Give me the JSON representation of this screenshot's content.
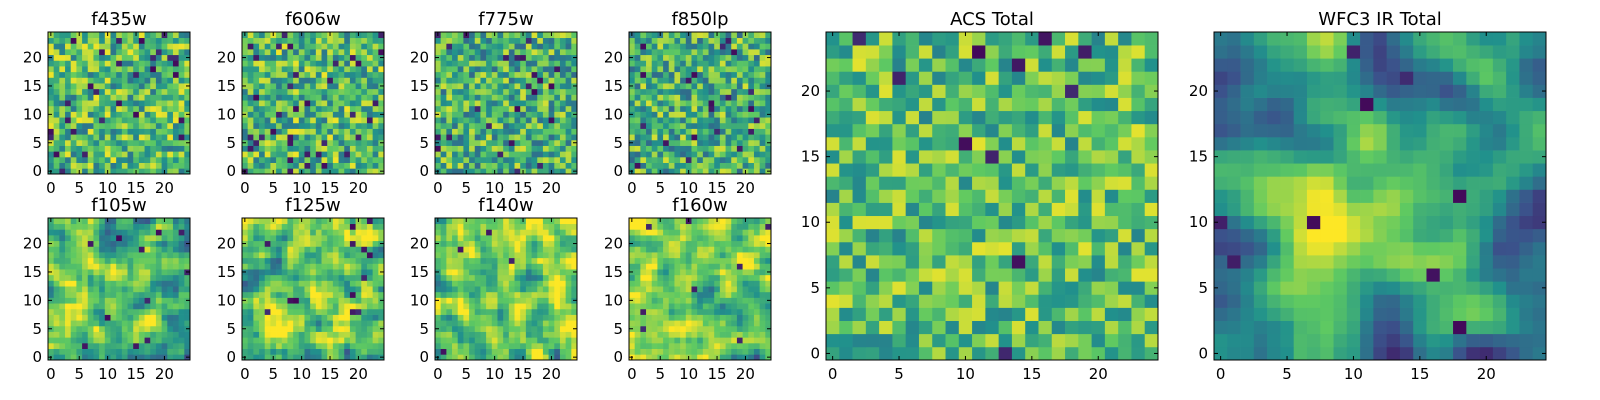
{
  "colormap": {
    "name": "viridis",
    "stops": [
      "#440154",
      "#3b528b",
      "#21918c",
      "#5ec962",
      "#fde725"
    ]
  },
  "chart_data": [
    {
      "type": "heatmap",
      "title": "f435w",
      "xlabel": "",
      "ylabel": "",
      "grid_size": 25,
      "xlim": [
        0,
        24
      ],
      "ylim": [
        0,
        24
      ],
      "xticks": [
        0,
        5,
        10,
        15,
        20
      ],
      "yticks": [
        0,
        5,
        10,
        15,
        20
      ],
      "value_range": [
        0,
        1
      ],
      "seed": 11,
      "smoothness": 0,
      "bias": 0.68,
      "spread": 0.3,
      "dark_spots": 0.05
    },
    {
      "type": "heatmap",
      "title": "f606w",
      "xlabel": "",
      "ylabel": "",
      "grid_size": 25,
      "xlim": [
        0,
        24
      ],
      "ylim": [
        0,
        24
      ],
      "xticks": [
        0,
        5,
        10,
        15,
        20
      ],
      "yticks": [
        0,
        5,
        10,
        15,
        20
      ],
      "value_range": [
        0,
        1
      ],
      "seed": 23,
      "smoothness": 0,
      "bias": 0.68,
      "spread": 0.3,
      "dark_spots": 0.05
    },
    {
      "type": "heatmap",
      "title": "f775w",
      "xlabel": "",
      "ylabel": "",
      "grid_size": 25,
      "xlim": [
        0,
        24
      ],
      "ylim": [
        0,
        24
      ],
      "xticks": [
        0,
        5,
        10,
        15,
        20
      ],
      "yticks": [
        0,
        5,
        10,
        15,
        20
      ],
      "value_range": [
        0,
        1
      ],
      "seed": 37,
      "smoothness": 0,
      "bias": 0.64,
      "spread": 0.3,
      "dark_spots": 0.04
    },
    {
      "type": "heatmap",
      "title": "f850lp",
      "xlabel": "",
      "ylabel": "",
      "grid_size": 25,
      "xlim": [
        0,
        24
      ],
      "ylim": [
        0,
        24
      ],
      "xticks": [
        0,
        5,
        10,
        15,
        20
      ],
      "yticks": [
        0,
        5,
        10,
        15,
        20
      ],
      "value_range": [
        0,
        1
      ],
      "seed": 41,
      "smoothness": 0,
      "bias": 0.64,
      "spread": 0.3,
      "dark_spots": 0.04
    },
    {
      "type": "heatmap",
      "title": "f105w",
      "xlabel": "",
      "ylabel": "",
      "grid_size": 25,
      "xlim": [
        0,
        24
      ],
      "ylim": [
        0,
        24
      ],
      "xticks": [
        0,
        5,
        10,
        15,
        20
      ],
      "yticks": [
        0,
        5,
        10,
        15,
        20
      ],
      "value_range": [
        0,
        1
      ],
      "seed": 53,
      "smoothness": 1,
      "bias": 0.66,
      "spread": 0.45,
      "dark_spots": 0.02
    },
    {
      "type": "heatmap",
      "title": "f125w",
      "xlabel": "",
      "ylabel": "",
      "grid_size": 25,
      "xlim": [
        0,
        24
      ],
      "ylim": [
        0,
        24
      ],
      "xticks": [
        0,
        5,
        10,
        15,
        20
      ],
      "yticks": [
        0,
        5,
        10,
        15,
        20
      ],
      "value_range": [
        0,
        1
      ],
      "seed": 67,
      "smoothness": 1,
      "bias": 0.72,
      "spread": 0.45,
      "dark_spots": 0.02
    },
    {
      "type": "heatmap",
      "title": "f140w",
      "xlabel": "",
      "ylabel": "",
      "grid_size": 25,
      "xlim": [
        0,
        24
      ],
      "ylim": [
        0,
        24
      ],
      "xticks": [
        0,
        5,
        10,
        15,
        20
      ],
      "yticks": [
        0,
        5,
        10,
        15,
        20
      ],
      "value_range": [
        0,
        1
      ],
      "seed": 79,
      "smoothness": 1,
      "bias": 0.74,
      "spread": 0.45,
      "dark_spots": 0.01
    },
    {
      "type": "heatmap",
      "title": "f160w",
      "xlabel": "",
      "ylabel": "",
      "grid_size": 25,
      "xlim": [
        0,
        24
      ],
      "ylim": [
        0,
        24
      ],
      "xticks": [
        0,
        5,
        10,
        15,
        20
      ],
      "yticks": [
        0,
        5,
        10,
        15,
        20
      ],
      "value_range": [
        0,
        1
      ],
      "seed": 83,
      "smoothness": 1,
      "bias": 0.68,
      "spread": 0.45,
      "dark_spots": 0.02
    },
    {
      "type": "heatmap",
      "title": "ACS Total",
      "xlabel": "",
      "ylabel": "",
      "grid_size": 25,
      "xlim": [
        0,
        24
      ],
      "ylim": [
        0,
        24
      ],
      "xticks": [
        0,
        5,
        10,
        15,
        20
      ],
      "yticks": [
        0,
        5,
        10,
        15,
        20
      ],
      "value_range": [
        0,
        1
      ],
      "seed": 97,
      "smoothness": 0,
      "bias": 0.7,
      "spread": 0.26,
      "dark_spots": 0.025
    },
    {
      "type": "heatmap",
      "title": "WFC3 IR Total",
      "xlabel": "",
      "ylabel": "",
      "grid_size": 25,
      "xlim": [
        0,
        24
      ],
      "ylim": [
        0,
        24
      ],
      "xticks": [
        0,
        5,
        10,
        15,
        20
      ],
      "yticks": [
        0,
        5,
        10,
        15,
        20
      ],
      "value_range": [
        0,
        1
      ],
      "seed": 101,
      "smoothness": 2,
      "bias": 0.62,
      "spread": 0.4,
      "dark_spots": 0.012,
      "center_glow": 0.45
    }
  ]
}
